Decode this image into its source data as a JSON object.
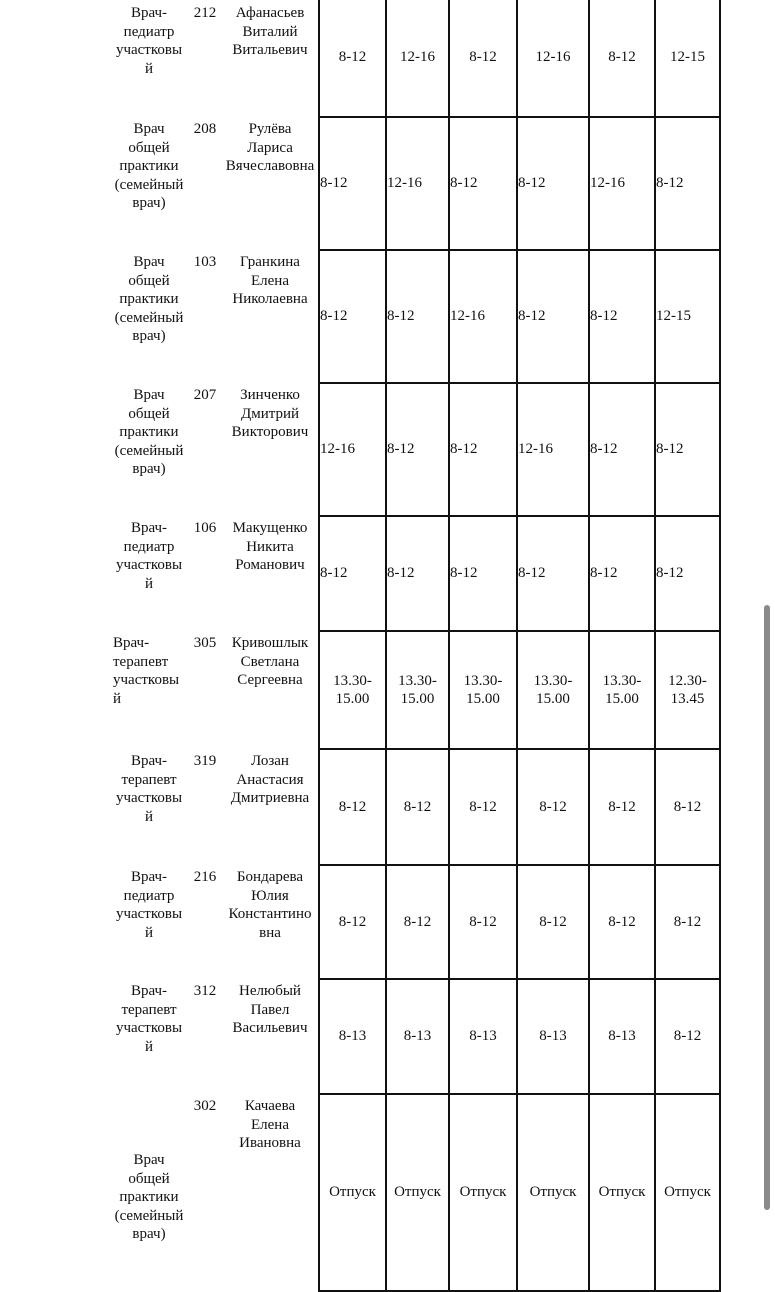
{
  "rows": [
    {
      "position": "Врач-\nпедиатр\nучастковы\nй",
      "room": "212",
      "name": "Афанасьев\nВиталий\nВитальевич",
      "hours": [
        "8-12",
        "12-16",
        "8-12",
        "12-16",
        "8-12",
        "12-15"
      ]
    },
    {
      "position": "Врач\nобщей\nпрактики\n(семейный\nврач)",
      "room": "208",
      "name": "Рулёва\nЛариса\nВячеславовна",
      "hours": [
        "8-12",
        "12-16",
        "8-12",
        "8-12",
        "12-16",
        "8-12"
      ]
    },
    {
      "position": "Врач\nобщей\nпрактики\n(семейный\nврач)",
      "room": "103",
      "name": "Гранкина\nЕлена\nНиколаевна",
      "hours": [
        "8-12",
        "8-12",
        "12-16",
        "8-12",
        "8-12",
        "12-15"
      ]
    },
    {
      "position": "Врач\nобщей\nпрактики\n(семейный\nврач)",
      "room": "207",
      "name": "Зинченко\nДмитрий\nВикторович",
      "hours": [
        "12-16",
        "8-12",
        "8-12",
        "12-16",
        "8-12",
        "8-12"
      ]
    },
    {
      "position": "Врач-\nпедиатр\nучастковы\nй",
      "room": "106",
      "name": "Макущенко\nНикита\nРоманович",
      "hours": [
        "8-12",
        "8-12",
        "8-12",
        "8-12",
        "8-12",
        "8-12"
      ]
    },
    {
      "position": "Врач-\nтерапевт\nучастковы\nй",
      "room": "305",
      "name": "Кривошлык\nСветлана\nСергеевна",
      "hours": [
        "13.30-\n15.00",
        "13.30-\n15.00",
        "13.30-\n15.00",
        "13.30-\n15.00",
        "13.30-\n15.00",
        "12.30-\n13.45"
      ]
    },
    {
      "position": "Врач-\nтерапевт\nучастковы\nй",
      "room": "319",
      "name": "Лозан\nАнастасия\nДмитриевна",
      "hours": [
        "8-12",
        "8-12",
        "8-12",
        "8-12",
        "8-12",
        "8-12"
      ]
    },
    {
      "position": "Врач-\nпедиатр\nучастковы\nй",
      "room": "216",
      "name": "Бондарева\nЮлия\nКонстантино\nвна",
      "hours": [
        "8-12",
        "8-12",
        "8-12",
        "8-12",
        "8-12",
        "8-12"
      ]
    },
    {
      "position": "Врач-\nтерапевт\nучастковы\nй",
      "room": "312",
      "name": "Нелюбый\nПавел\nВасильевич",
      "hours": [
        "8-13",
        "8-13",
        "8-13",
        "8-13",
        "8-13",
        "8-12"
      ]
    },
    {
      "position": "Врач\nобщей\nпрактики\n(семейный\nврач)",
      "room": "302",
      "name": "Качаева\nЕлена\nИвановна",
      "hours": [
        "Отпуск",
        "Отпуск",
        "Отпуск",
        "Отпуск",
        "Отпуск",
        "Отпуск"
      ]
    }
  ]
}
